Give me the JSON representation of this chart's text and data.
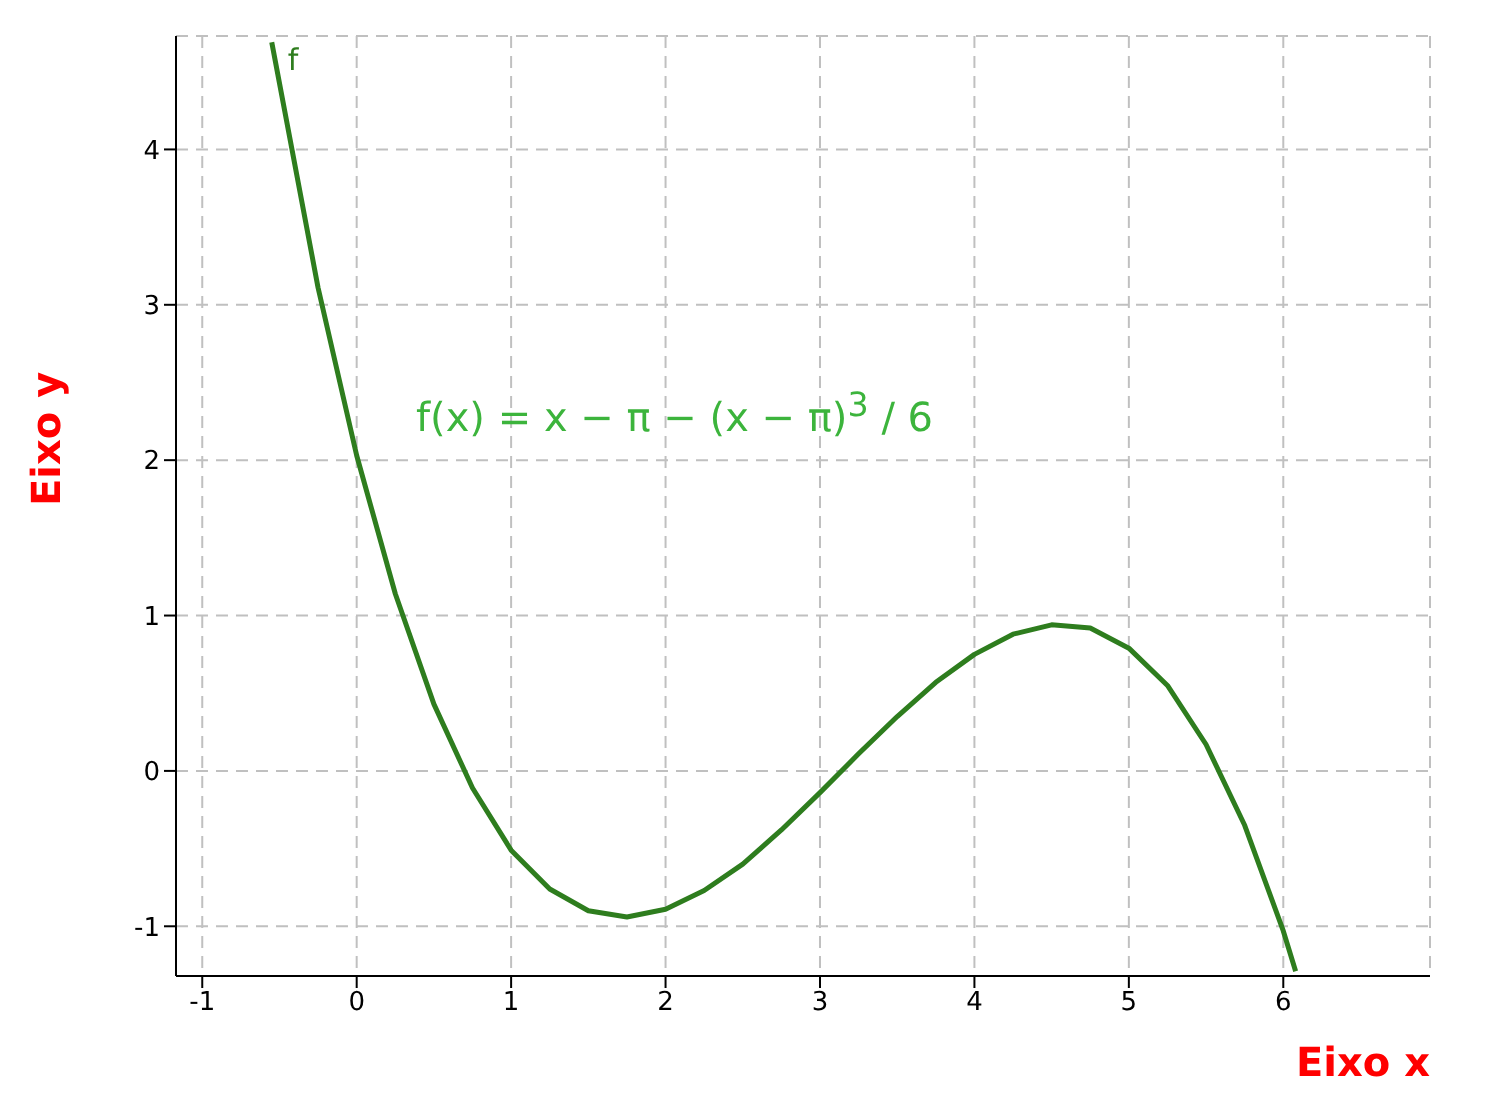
{
  "chart_data": {
    "type": "line",
    "xlabel": "Eixo x",
    "ylabel": "Eixo y",
    "annotations": [
      "f(x) = x − π − (x − π)$^{3}$ / 6"
    ],
    "x": [
      -0.55,
      -0.25,
      0,
      0.25,
      0.5,
      0.75,
      1,
      1.25,
      1.5,
      1.75,
      2,
      2.25,
      2.5,
      2.75,
      3,
      3.25,
      3.5,
      3.75,
      4,
      4.25,
      4.5,
      4.75,
      5,
      5.25,
      5.5,
      5.75,
      6,
      6.08
    ],
    "series": [
      {
        "name": "f",
        "color": "#2e7d1e",
        "values": [
          4.69,
          3.11,
          2.03,
          1.14,
          0.43,
          -0.11,
          -0.51,
          -0.76,
          -0.9,
          -0.94,
          -0.89,
          -0.77,
          -0.6,
          -0.38,
          -0.14,
          0.11,
          0.35,
          0.57,
          0.75,
          0.88,
          0.94,
          0.92,
          0.79,
          0.55,
          0.17,
          -0.35,
          -1.03,
          -1.29
        ]
      }
    ],
    "xlim": [
      -1.17,
      6.95
    ],
    "ylim": [
      -1.32,
      4.73
    ],
    "xticks": [
      -1,
      0,
      1,
      2,
      3,
      4,
      5,
      6
    ],
    "yticks": [
      -1,
      0,
      1,
      2,
      3,
      4
    ],
    "grid": true,
    "line_style": "solid",
    "marker": "none"
  }
}
